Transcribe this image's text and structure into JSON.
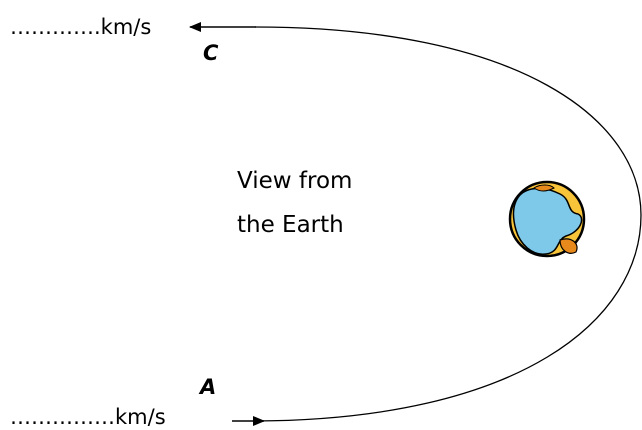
{
  "labels": {
    "top_speed": "………….km/s",
    "point_c": "C",
    "caption": [
      "View from",
      "the Earth"
    ],
    "point_a": "A",
    "bottom_speed": "……………km/s"
  }
}
